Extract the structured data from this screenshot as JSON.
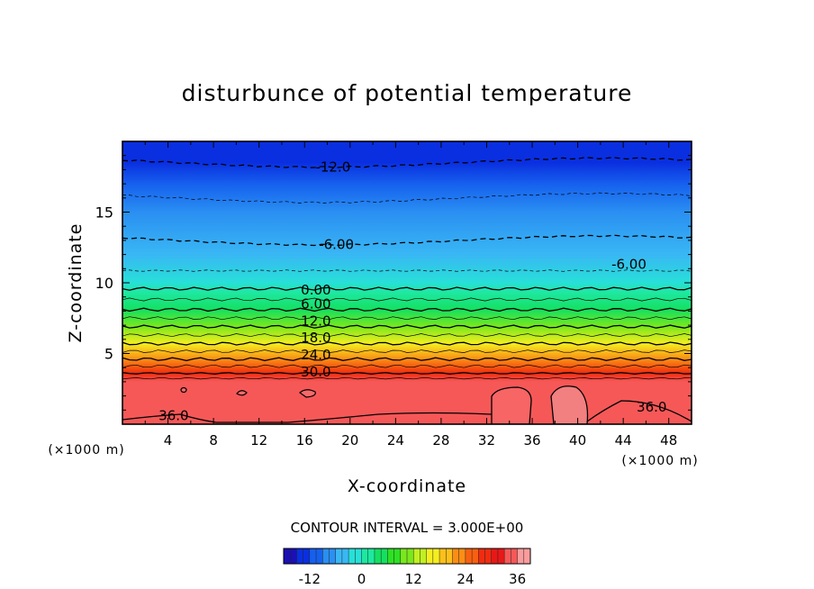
{
  "chart_data": {
    "type": "heatmap",
    "title": "disturbunce of potential temperature",
    "xlabel": "X-coordinate",
    "ylabel": "Z-coordinate",
    "x_unit_left": "(×1000 m)",
    "x_unit_right": "(×1000 m)",
    "xlim": [
      0,
      50
    ],
    "ylim": [
      0,
      20
    ],
    "xticks": [
      4,
      8,
      12,
      16,
      20,
      24,
      28,
      32,
      36,
      40,
      44,
      48
    ],
    "yticks": [
      5,
      10,
      15
    ],
    "contour_interval_text": "CONTOUR INTERVAL = 3.000E+00",
    "colorbar": {
      "min": -18,
      "max": 39,
      "ticks": [
        -12,
        0,
        12,
        24,
        36
      ]
    },
    "contour_labels": [
      {
        "text": "-12.0",
        "x": 18.5,
        "z": 18.2
      },
      {
        "text": "-6.00",
        "x": 18.8,
        "z": 12.7
      },
      {
        "text": "-6.00",
        "x": 44.5,
        "z": 11.3
      },
      {
        "text": "0.00",
        "x": 17.0,
        "z": 9.5
      },
      {
        "text": "6.00",
        "x": 17.0,
        "z": 8.5
      },
      {
        "text": "12.0",
        "x": 17.0,
        "z": 7.3
      },
      {
        "text": "18.0",
        "x": 17.0,
        "z": 6.1
      },
      {
        "text": "24.0",
        "x": 17.0,
        "z": 4.9
      },
      {
        "text": "30.0",
        "x": 17.0,
        "z": 3.7
      },
      {
        "text": "36.0",
        "x": 4.5,
        "z": 0.6
      },
      {
        "text": "36.0",
        "x": 46.5,
        "z": 1.2
      }
    ],
    "profile": [
      {
        "z": 0.0,
        "value": 36
      },
      {
        "z": 3.0,
        "value": 35
      },
      {
        "z": 3.6,
        "value": 30
      },
      {
        "z": 4.6,
        "value": 24
      },
      {
        "z": 5.7,
        "value": 18
      },
      {
        "z": 6.9,
        "value": 12
      },
      {
        "z": 8.1,
        "value": 6
      },
      {
        "z": 9.3,
        "value": 1
      },
      {
        "z": 10.0,
        "value": -1.5
      },
      {
        "z": 12.0,
        "value": -5
      },
      {
        "z": 15.0,
        "value": -8
      },
      {
        "z": 17.0,
        "value": -10
      },
      {
        "z": 18.5,
        "value": -12
      },
      {
        "z": 20.0,
        "value": -14
      }
    ],
    "grid": false
  }
}
